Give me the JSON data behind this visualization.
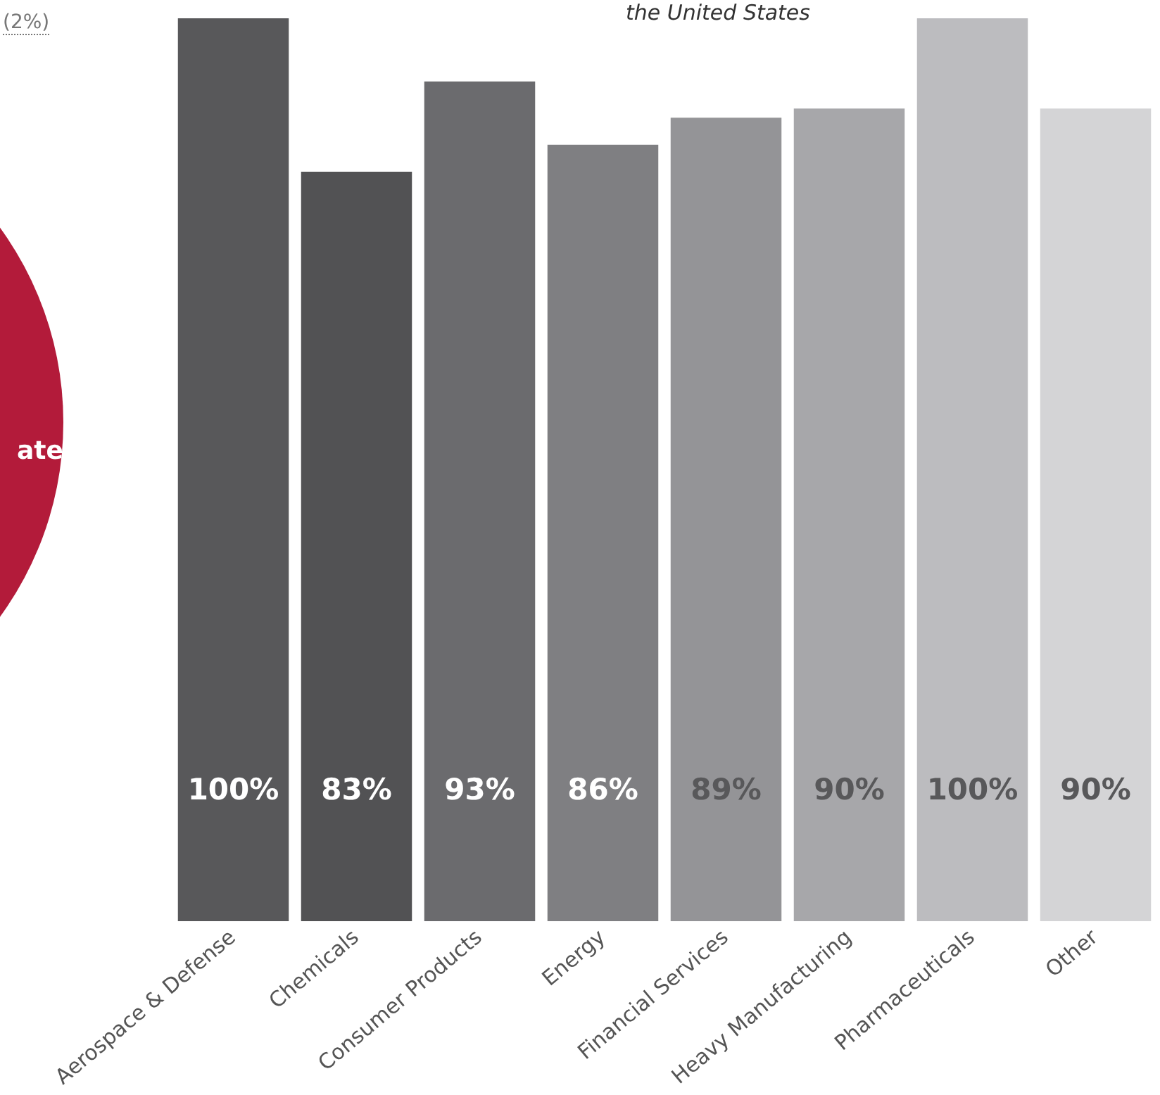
{
  "chart_data": {
    "type": "bar",
    "title": "the United States",
    "categories": [
      "Aerospace & Defense",
      "Chemicals",
      "Consumer Products",
      "Energy",
      "Financial Services",
      "Heavy Manufacturing",
      "Pharmaceuticals",
      "Other"
    ],
    "values": [
      100,
      83,
      93,
      86,
      89,
      90,
      100,
      90
    ],
    "colors": [
      "#58585a",
      "#525254",
      "#6b6b6e",
      "#7f7f82",
      "#949497",
      "#a7a7aa",
      "#bcbcbf",
      "#d4d4d6"
    ],
    "tick_labels": "x",
    "grid": false,
    "legend": false,
    "data_labels": true,
    "value_labels": [
      "100%",
      "83%",
      "93%",
      "86%",
      "89%",
      "90%",
      "100%",
      "90%"
    ],
    "annotations": [
      "(2%)",
      "ate"
    ]
  }
}
